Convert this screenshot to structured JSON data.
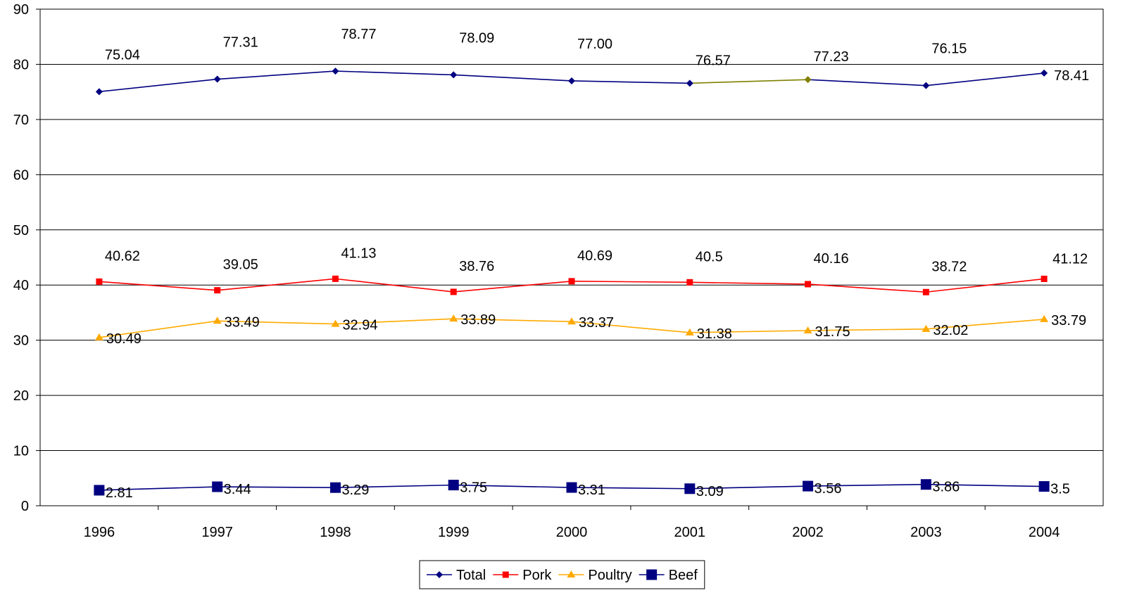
{
  "chart_data": {
    "type": "line",
    "title": "",
    "xlabel": "",
    "ylabel": "",
    "x": [
      "1996",
      "1997",
      "1998",
      "1999",
      "2000",
      "2001",
      "2002",
      "2003",
      "2004"
    ],
    "ylim": [
      0,
      90
    ],
    "yticks": [
      "0",
      "10",
      "20",
      "30",
      "40",
      "50",
      "60",
      "70",
      "80",
      "90"
    ],
    "grid": "horizontal",
    "legend": "bottom-center",
    "series": [
      {
        "name": "Total",
        "color": "#000080",
        "marker": "diamond",
        "values": [
          75.04,
          77.31,
          78.77,
          78.09,
          77.0,
          76.57,
          77.23,
          76.15,
          78.41
        ],
        "labels": [
          "75.04",
          "77.31",
          "78.77",
          "78.09",
          "77.00",
          "76.57",
          "77.23",
          "76.15",
          "78.41"
        ],
        "highlight_segment_color": "#808000"
      },
      {
        "name": "Pork",
        "color": "#ff0000",
        "marker": "square",
        "values": [
          40.62,
          39.05,
          41.13,
          38.76,
          40.69,
          40.5,
          40.16,
          38.72,
          41.12
        ],
        "labels": [
          "40.62",
          "39.05",
          "41.13",
          "38.76",
          "40.69",
          "40.5",
          "40.16",
          "38.72",
          "41.12"
        ]
      },
      {
        "name": "Poultry",
        "color": "#ffaa00",
        "marker": "triangle",
        "values": [
          30.49,
          33.49,
          32.94,
          33.89,
          33.37,
          31.38,
          31.75,
          32.02,
          33.79
        ],
        "labels": [
          "30.49",
          "33.49",
          "32.94",
          "33.89",
          "33.37",
          "31.38",
          "31.75",
          "32.02",
          "33.79"
        ]
      },
      {
        "name": "Beef",
        "color": "#000080",
        "marker": "big-square",
        "values": [
          2.81,
          3.44,
          3.29,
          3.75,
          3.31,
          3.09,
          3.56,
          3.86,
          3.5
        ],
        "labels": [
          "2.81",
          "3.44",
          "3.29",
          "3.75",
          "3.31",
          "3.09",
          "3.56",
          "3.86",
          "3.5"
        ]
      }
    ]
  }
}
